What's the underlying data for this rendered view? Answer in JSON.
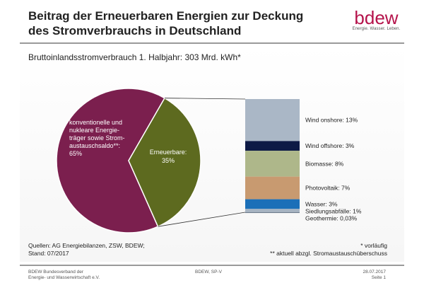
{
  "header": {
    "title_line1": "Beitrag der Erneuerbaren Energien zur Deckung",
    "title_line2": "des Stromverbrauchs in Deutschland",
    "logo_text": "bdew",
    "logo_tagline": "Energie. Wasser. Leben."
  },
  "subtitle": "Bruttoinlandsstromverbrauch 1. Halbjahr: 303 Mrd. kWh*",
  "chart_data": {
    "type": "pie",
    "pie": [
      {
        "label": "konventionelle und nukleare Energie-träger sowie Strom-austauschsaldo**:",
        "value_label": "65%",
        "value": 65,
        "color": "#7b1f4e"
      },
      {
        "label": "Erneuerbare:",
        "value_label": "35%",
        "value": 35,
        "color": "#5d6a1f"
      }
    ],
    "breakdown": {
      "type": "stacked-bar",
      "segments": [
        {
          "label": "Wind onshore: 13%",
          "value": 13,
          "color": "#aab7c6"
        },
        {
          "label": "Wind offshore: 3%",
          "value": 3,
          "color": "#0d1a45"
        },
        {
          "label": "Biomasse: 8%",
          "value": 8,
          "color": "#aeb78a"
        },
        {
          "label": "Photovoltaik: 7%",
          "value": 7,
          "color": "#c89a70"
        },
        {
          "label": "Wasser: 3%",
          "value": 3,
          "color": "#1b6fb8"
        },
        {
          "label": "Siedlungsabfälle: 1%",
          "value": 1,
          "color": "#a6b4c2"
        },
        {
          "label": "Geothermie: 0,03%",
          "value": 0.03,
          "color": "#6c7b8c"
        }
      ]
    }
  },
  "footnotes": {
    "source": "Quellen: AG Energiebilanzen, ZSW, BDEW; Stand: 07/2017",
    "source_line1": "Quellen: AG Energiebilanzen, ZSW, BDEW;",
    "source_line2": "Stand: 07/2017",
    "note1": "* vorläufig",
    "note2": "** aktuell abzgl. Stromaustauschüberschuss"
  },
  "footer": {
    "org_line1": "BDEW Bundesverband  der",
    "org_line2": "Energie- und Wasserwirtschaft e.V.",
    "center": "BDEW, SP-V",
    "date": "28.07.2017",
    "page": "Seite 1"
  }
}
